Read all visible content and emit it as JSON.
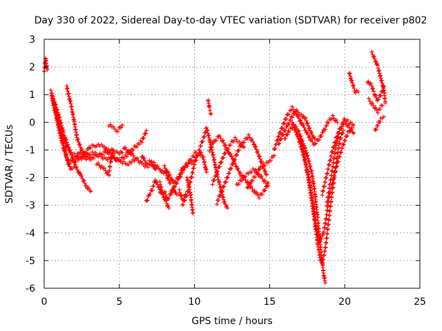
{
  "chart_data": {
    "type": "scatter",
    "title": "Day 330 of 2022, Sidereal Day-to-day VTEC variation (SDTVAR) for receiver p802",
    "xlabel": "GPS time / hours",
    "ylabel": "SDTVAR / TECUs",
    "xlim": [
      0,
      25
    ],
    "ylim": [
      -6,
      3
    ],
    "xticks": [
      "0",
      "5",
      "10",
      "15",
      "20",
      "25"
    ],
    "yticks": [
      "-6",
      "-5",
      "-4",
      "-3",
      "-2",
      "-1",
      "0",
      "1",
      "2",
      "3"
    ],
    "grid": true,
    "marker": "+",
    "series_color": "#ff0000",
    "segments": [
      [
        [
          0.0,
          1.9
        ],
        [
          0.1,
          2.3
        ],
        [
          0.2,
          1.9
        ]
      ],
      [
        [
          0.45,
          1.1
        ],
        [
          0.6,
          0.7
        ],
        [
          0.8,
          0.2
        ],
        [
          1.0,
          -0.3
        ],
        [
          1.2,
          -0.7
        ],
        [
          1.4,
          -1.1
        ],
        [
          1.6,
          -1.5
        ],
        [
          1.8,
          -1.7
        ],
        [
          2.0,
          -1.6
        ]
      ],
      [
        [
          0.5,
          1.0
        ],
        [
          0.7,
          0.6
        ],
        [
          0.9,
          0.1
        ],
        [
          1.1,
          -0.4
        ],
        [
          1.3,
          -0.9
        ],
        [
          1.5,
          -1.3
        ],
        [
          1.7,
          -1.5
        ]
      ],
      [
        [
          0.6,
          0.9
        ],
        [
          0.8,
          0.3
        ],
        [
          1.0,
          -0.1
        ],
        [
          1.2,
          -0.5
        ],
        [
          1.5,
          -0.9
        ],
        [
          1.8,
          -1.1
        ],
        [
          2.1,
          -1.2
        ],
        [
          2.4,
          -1.3
        ],
        [
          2.8,
          -1.3
        ],
        [
          3.2,
          -1.3
        ],
        [
          3.6,
          -1.2
        ],
        [
          4.0,
          -1.3
        ],
        [
          4.5,
          -1.3
        ],
        [
          5.0,
          -1.4
        ],
        [
          5.5,
          -1.5
        ],
        [
          6.0,
          -1.4
        ]
      ],
      [
        [
          0.7,
          0.7
        ],
        [
          1.0,
          0.2
        ],
        [
          1.3,
          -0.4
        ],
        [
          1.6,
          -0.9
        ],
        [
          1.9,
          -1.3
        ],
        [
          2.2,
          -1.7
        ],
        [
          2.5,
          -2.0
        ],
        [
          2.8,
          -2.3
        ],
        [
          3.1,
          -2.5
        ]
      ],
      [
        [
          1.5,
          1.3
        ],
        [
          1.8,
          0.6
        ],
        [
          2.0,
          0.0
        ],
        [
          2.2,
          -0.6
        ],
        [
          2.5,
          -1.0
        ],
        [
          2.8,
          -1.2
        ],
        [
          3.1,
          -1.3
        ]
      ],
      [
        [
          1.6,
          -1.5
        ],
        [
          2.0,
          -1.3
        ],
        [
          2.4,
          -1.1
        ],
        [
          2.8,
          -1.2
        ],
        [
          3.2,
          -1.1
        ],
        [
          3.6,
          -1.2
        ],
        [
          4.0,
          -1.1
        ],
        [
          4.4,
          -1.0
        ],
        [
          4.8,
          -1.1
        ],
        [
          5.2,
          -1.1
        ]
      ],
      [
        [
          2.0,
          -1.4
        ],
        [
          2.5,
          -1.3
        ],
        [
          3.0,
          -0.9
        ],
        [
          3.5,
          -0.8
        ],
        [
          4.0,
          -0.9
        ],
        [
          4.5,
          -1.2
        ],
        [
          5.0,
          -1.4
        ],
        [
          5.5,
          -1.2
        ],
        [
          6.0,
          -0.9
        ],
        [
          6.5,
          -0.7
        ],
        [
          6.8,
          -0.3
        ]
      ],
      [
        [
          3.5,
          -1.5
        ],
        [
          4.0,
          -1.7
        ],
        [
          4.3,
          -1.9
        ],
        [
          4.4,
          -1.5
        ],
        [
          4.6,
          -1.0
        ]
      ],
      [
        [
          4.3,
          -0.1
        ],
        [
          4.6,
          -0.2
        ],
        [
          4.9,
          -0.3
        ],
        [
          5.2,
          -0.1
        ]
      ],
      [
        [
          5.3,
          -0.9
        ],
        [
          5.7,
          -1.1
        ],
        [
          6.1,
          -1.3
        ],
        [
          6.5,
          -1.5
        ],
        [
          6.9,
          -1.6
        ],
        [
          7.3,
          -1.5
        ],
        [
          7.7,
          -1.7
        ],
        [
          8.1,
          -1.9
        ],
        [
          8.4,
          -2.2
        ]
      ],
      [
        [
          6.5,
          -1.2
        ],
        [
          6.8,
          -1.5
        ],
        [
          7.1,
          -1.4
        ],
        [
          7.4,
          -1.7
        ]
      ],
      [
        [
          6.8,
          -2.9
        ],
        [
          7.0,
          -2.6
        ],
        [
          7.2,
          -2.4
        ],
        [
          7.4,
          -2.1
        ],
        [
          7.6,
          -2.3
        ],
        [
          7.8,
          -2.6
        ],
        [
          8.0,
          -2.5
        ],
        [
          8.2,
          -2.8
        ],
        [
          8.4,
          -2.6
        ],
        [
          8.6,
          -2.4
        ],
        [
          8.8,
          -2.6
        ],
        [
          9.0,
          -2.5
        ],
        [
          9.2,
          -2.8
        ],
        [
          9.4,
          -2.6
        ]
      ],
      [
        [
          7.7,
          -2.2
        ],
        [
          7.9,
          -2.6
        ],
        [
          8.1,
          -2.9
        ],
        [
          8.3,
          -3.1
        ]
      ],
      [
        [
          8.0,
          -1.6
        ],
        [
          8.3,
          -1.9
        ],
        [
          8.6,
          -2.2
        ],
        [
          8.9,
          -2.0
        ],
        [
          9.2,
          -1.7
        ],
        [
          9.5,
          -1.5
        ],
        [
          9.8,
          -1.3
        ],
        [
          10.1,
          -1.1
        ],
        [
          10.4,
          -1.2
        ]
      ],
      [
        [
          8.4,
          -2.6
        ],
        [
          8.7,
          -2.3
        ],
        [
          9.0,
          -2.0
        ],
        [
          9.3,
          -1.7
        ],
        [
          9.6,
          -1.5
        ],
        [
          9.9,
          -1.4
        ],
        [
          10.2,
          -1.2
        ]
      ],
      [
        [
          9.2,
          -3.0
        ],
        [
          9.5,
          -2.6
        ],
        [
          9.8,
          -2.0
        ],
        [
          10.0,
          -1.5
        ],
        [
          10.2,
          -1.2
        ],
        [
          10.4,
          -1.1
        ],
        [
          10.6,
          -1.3
        ],
        [
          10.8,
          -1.8
        ]
      ],
      [
        [
          9.5,
          -2.0
        ],
        [
          9.7,
          -2.5
        ],
        [
          9.8,
          -2.9
        ],
        [
          9.9,
          -3.3
        ]
      ],
      [
        [
          10.3,
          -1.0
        ],
        [
          10.6,
          -0.6
        ],
        [
          10.8,
          -0.2
        ],
        [
          11.0,
          -0.6
        ],
        [
          11.2,
          -1.1
        ],
        [
          11.4,
          -1.6
        ],
        [
          11.6,
          -2.1
        ],
        [
          11.8,
          -2.5
        ],
        [
          12.0,
          -2.9
        ],
        [
          12.2,
          -3.1
        ]
      ],
      [
        [
          10.9,
          0.8
        ],
        [
          11.0,
          0.5
        ],
        [
          11.1,
          0.3
        ]
      ],
      [
        [
          11.0,
          -1.0
        ],
        [
          11.3,
          -0.7
        ],
        [
          11.6,
          -0.5
        ],
        [
          11.9,
          -0.7
        ],
        [
          12.2,
          -1.0
        ],
        [
          12.5,
          -1.3
        ],
        [
          12.8,
          -1.6
        ],
        [
          13.1,
          -1.9
        ],
        [
          13.4,
          -2.1
        ],
        [
          13.7,
          -2.3
        ],
        [
          14.0,
          -2.5
        ],
        [
          14.3,
          -2.7
        ],
        [
          14.6,
          -2.5
        ],
        [
          14.9,
          -2.2
        ]
      ],
      [
        [
          11.2,
          -2.2
        ],
        [
          11.5,
          -1.8
        ],
        [
          11.8,
          -1.4
        ],
        [
          12.1,
          -1.0
        ],
        [
          12.4,
          -0.8
        ],
        [
          12.7,
          -0.6
        ],
        [
          13.0,
          -0.7
        ],
        [
          13.3,
          -0.9
        ]
      ],
      [
        [
          11.5,
          -2.9
        ],
        [
          11.8,
          -2.5
        ],
        [
          12.1,
          -2.1
        ],
        [
          12.4,
          -1.7
        ],
        [
          12.7,
          -1.3
        ],
        [
          13.0,
          -0.9
        ],
        [
          13.3,
          -0.7
        ],
        [
          13.6,
          -0.5
        ],
        [
          13.9,
          -0.7
        ],
        [
          14.2,
          -1.1
        ],
        [
          14.5,
          -1.5
        ],
        [
          14.8,
          -1.9
        ]
      ],
      [
        [
          12.8,
          -2.3
        ],
        [
          13.1,
          -2.1
        ],
        [
          13.4,
          -1.9
        ],
        [
          13.7,
          -1.8
        ],
        [
          14.0,
          -1.7
        ],
        [
          14.3,
          -1.9
        ],
        [
          14.6,
          -2.1
        ],
        [
          14.9,
          -2.3
        ]
      ],
      [
        [
          13.5,
          -2.4
        ],
        [
          13.8,
          -2.1
        ],
        [
          14.1,
          -1.9
        ],
        [
          14.4,
          -1.6
        ],
        [
          14.7,
          -1.5
        ],
        [
          15.0,
          -1.4
        ],
        [
          15.3,
          -1.2
        ]
      ],
      [
        [
          15.3,
          -1.0
        ],
        [
          15.6,
          -0.5
        ],
        [
          15.9,
          -0.1
        ],
        [
          16.2,
          0.3
        ],
        [
          16.5,
          0.5
        ],
        [
          16.8,
          0.3
        ],
        [
          17.1,
          0.0
        ],
        [
          17.4,
          -0.3
        ],
        [
          17.7,
          -0.6
        ],
        [
          18.0,
          -0.8
        ],
        [
          18.3,
          -0.6
        ],
        [
          18.6,
          -0.3
        ],
        [
          18.9,
          0.0
        ],
        [
          19.2,
          0.2
        ],
        [
          19.5,
          0.0
        ]
      ],
      [
        [
          15.6,
          -0.8
        ],
        [
          15.9,
          -0.4
        ],
        [
          16.2,
          -0.1
        ],
        [
          16.5,
          0.2
        ],
        [
          16.8,
          0.4
        ],
        [
          17.1,
          0.3
        ],
        [
          17.4,
          0.1
        ],
        [
          17.7,
          -0.3
        ],
        [
          18.0,
          -0.6
        ]
      ],
      [
        [
          16.0,
          -0.6
        ],
        [
          16.3,
          -0.3
        ],
        [
          16.6,
          -0.1
        ],
        [
          16.9,
          -0.3
        ],
        [
          17.2,
          -0.7
        ],
        [
          17.5,
          -1.2
        ],
        [
          17.8,
          -1.8
        ],
        [
          18.0,
          -2.5
        ],
        [
          18.2,
          -3.5
        ],
        [
          18.4,
          -4.6
        ],
        [
          18.6,
          -5.5
        ],
        [
          18.7,
          -5.8
        ]
      ],
      [
        [
          16.5,
          0.0
        ],
        [
          16.8,
          -0.4
        ],
        [
          17.1,
          -0.9
        ],
        [
          17.4,
          -1.5
        ],
        [
          17.6,
          -2.1
        ],
        [
          17.8,
          -2.8
        ],
        [
          18.0,
          -3.6
        ],
        [
          18.2,
          -4.4
        ],
        [
          18.4,
          -5.0
        ],
        [
          18.5,
          -5.1
        ],
        [
          18.7,
          -4.6
        ],
        [
          18.9,
          -3.7
        ],
        [
          19.1,
          -2.8
        ],
        [
          19.3,
          -2.0
        ],
        [
          19.5,
          -1.2
        ],
        [
          19.7,
          -0.6
        ],
        [
          19.9,
          -0.3
        ]
      ],
      [
        [
          17.0,
          -0.5
        ],
        [
          17.3,
          -1.2
        ],
        [
          17.6,
          -2.0
        ],
        [
          17.9,
          -3.0
        ],
        [
          18.1,
          -3.8
        ],
        [
          18.3,
          -4.3
        ],
        [
          18.6,
          -4.0
        ],
        [
          18.8,
          -3.3
        ],
        [
          19.0,
          -2.6
        ],
        [
          19.3,
          -1.9
        ],
        [
          19.6,
          -1.3
        ],
        [
          19.9,
          -0.8
        ],
        [
          20.2,
          -0.4
        ],
        [
          20.5,
          -0.2
        ]
      ],
      [
        [
          18.8,
          -3.0
        ],
        [
          19.0,
          -2.3
        ],
        [
          19.2,
          -1.6
        ],
        [
          19.4,
          -0.9
        ],
        [
          19.6,
          -0.4
        ],
        [
          19.8,
          -0.1
        ],
        [
          20.0,
          0.1
        ],
        [
          20.3,
          0.0
        ],
        [
          20.6,
          -0.1
        ]
      ],
      [
        [
          18.5,
          -2.6
        ],
        [
          18.8,
          -1.9
        ],
        [
          19.1,
          -1.2
        ],
        [
          19.4,
          -0.6
        ],
        [
          19.7,
          -0.2
        ],
        [
          20.0,
          0.0
        ],
        [
          20.3,
          -0.2
        ],
        [
          20.6,
          -0.4
        ]
      ],
      [
        [
          20.3,
          1.8
        ],
        [
          20.5,
          1.4
        ],
        [
          20.7,
          1.1
        ],
        [
          20.9,
          1.1
        ]
      ],
      [
        [
          21.5,
          1.5
        ],
        [
          21.8,
          1.3
        ],
        [
          22.0,
          1.0
        ],
        [
          22.2,
          0.8
        ],
        [
          22.4,
          1.0
        ],
        [
          22.6,
          1.3
        ]
      ],
      [
        [
          21.6,
          0.8
        ],
        [
          21.9,
          0.6
        ],
        [
          22.2,
          0.4
        ],
        [
          22.5,
          0.6
        ]
      ],
      [
        [
          21.8,
          2.5
        ],
        [
          22.0,
          2.3
        ],
        [
          22.2,
          2.0
        ],
        [
          22.4,
          1.6
        ],
        [
          22.6,
          1.2
        ],
        [
          22.7,
          0.7
        ]
      ],
      [
        [
          22.0,
          -0.3
        ],
        [
          22.2,
          -0.1
        ],
        [
          22.4,
          0.1
        ],
        [
          22.6,
          0.2
        ]
      ]
    ]
  }
}
